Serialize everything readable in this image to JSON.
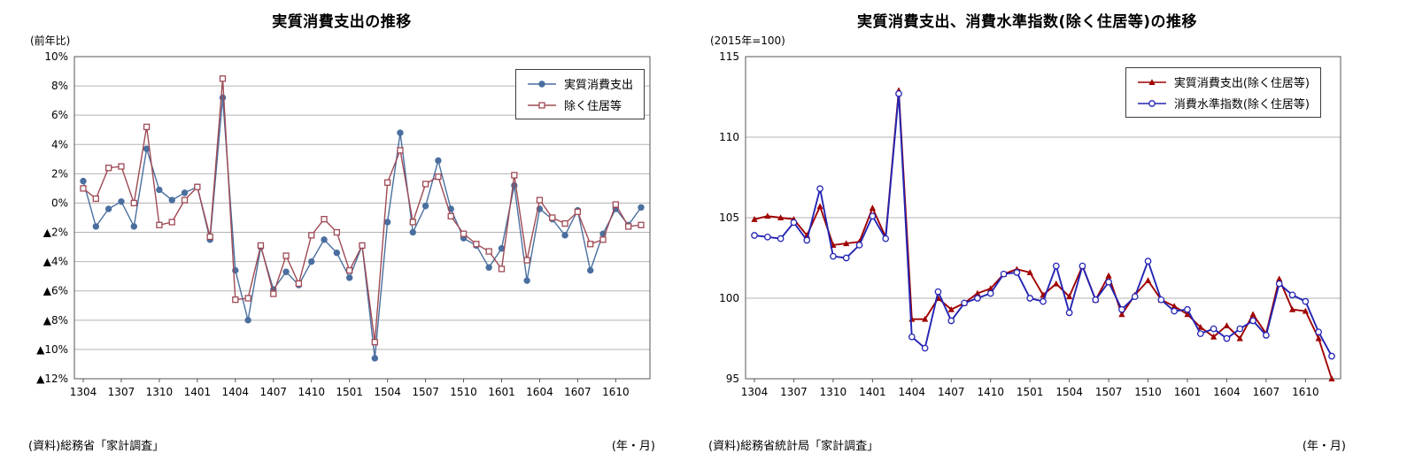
{
  "chart_data": [
    {
      "type": "line",
      "title": "実質消費支出の推移",
      "unit_label": "(前年比)",
      "source": "(資料)総務省「家計調査」",
      "axis_note": "(年・月)",
      "grid": true,
      "legend_position": "top-right",
      "ylim": [
        -12,
        10
      ],
      "ytick_step": 2,
      "ytick_labels": [
        "10%",
        "8%",
        "6%",
        "4%",
        "2%",
        "0%",
        "▲2%",
        "▲4%",
        "▲6%",
        "▲8%",
        "▲10%",
        "▲12%"
      ],
      "x_tick_labels": [
        "1304",
        "1307",
        "1310",
        "1401",
        "1404",
        "1407",
        "1410",
        "1501",
        "1504",
        "1507",
        "1510",
        "1601",
        "1604",
        "1607",
        "1610"
      ],
      "categories": [
        "1304",
        "1305",
        "1306",
        "1307",
        "1308",
        "1309",
        "1310",
        "1311",
        "1312",
        "1401",
        "1402",
        "1403",
        "1404",
        "1405",
        "1406",
        "1407",
        "1408",
        "1409",
        "1410",
        "1411",
        "1412",
        "1501",
        "1502",
        "1503",
        "1504",
        "1505",
        "1506",
        "1507",
        "1508",
        "1509",
        "1510",
        "1511",
        "1512",
        "1601",
        "1602",
        "1603",
        "1604",
        "1605",
        "1606",
        "1607",
        "1608",
        "1609",
        "1610",
        "1611",
        "1612"
      ],
      "series": [
        {
          "name": "実質消費支出",
          "color": "#4a6f9f",
          "marker": "circle-filled",
          "values": [
            1.5,
            -1.6,
            -0.4,
            0.1,
            -1.6,
            3.7,
            0.9,
            0.2,
            0.7,
            1.1,
            -2.5,
            7.2,
            -4.6,
            -8.0,
            -3.0,
            -5.9,
            -4.7,
            -5.6,
            -4.0,
            -2.5,
            -3.4,
            -5.1,
            -2.9,
            -10.6,
            -1.3,
            4.8,
            -2.0,
            -0.2,
            2.9,
            -0.4,
            -2.4,
            -2.9,
            -4.4,
            -3.1,
            1.2,
            -5.3,
            -0.4,
            -1.1,
            -2.2,
            -0.5,
            -4.6,
            -2.1,
            -0.4,
            -1.5,
            -0.3
          ]
        },
        {
          "name": "除く住居等",
          "color": "#9e4a54",
          "marker": "square-open",
          "values": [
            1.0,
            0.3,
            2.4,
            2.5,
            0.0,
            5.2,
            -1.5,
            -1.3,
            0.2,
            1.1,
            -2.3,
            8.5,
            -6.6,
            -6.5,
            -2.9,
            -6.2,
            -3.6,
            -5.5,
            -2.2,
            -1.1,
            -2.0,
            -4.6,
            -2.9,
            -9.5,
            1.4,
            3.6,
            -1.3,
            1.3,
            1.8,
            -0.9,
            -2.1,
            -2.8,
            -3.3,
            -4.5,
            1.9,
            -3.9,
            0.2,
            -1.0,
            -1.4,
            -0.6,
            -2.8,
            -2.5,
            -0.1,
            -1.6,
            -1.5
          ]
        }
      ]
    },
    {
      "type": "line",
      "title": "実質消費支出、消費水準指数(除く住居等)の推移",
      "unit_label": "(2015年=100)",
      "source": "(資料)総務省統計局「家計調査」",
      "axis_note": "(年・月)",
      "grid": true,
      "legend_position": "top-right",
      "ylim": [
        95,
        115
      ],
      "ytick_step": 5,
      "ytick_labels": [
        "115",
        "110",
        "105",
        "100",
        "95"
      ],
      "x_tick_labels": [
        "1304",
        "1307",
        "1310",
        "1401",
        "1404",
        "1407",
        "1410",
        "1501",
        "1504",
        "1507",
        "1510",
        "1601",
        "1604",
        "1607",
        "1610"
      ],
      "categories": [
        "1304",
        "1305",
        "1306",
        "1307",
        "1308",
        "1309",
        "1310",
        "1311",
        "1312",
        "1401",
        "1402",
        "1403",
        "1404",
        "1405",
        "1406",
        "1407",
        "1408",
        "1409",
        "1410",
        "1411",
        "1412",
        "1501",
        "1502",
        "1503",
        "1504",
        "1505",
        "1506",
        "1507",
        "1508",
        "1509",
        "1510",
        "1511",
        "1512",
        "1601",
        "1602",
        "1603",
        "1604",
        "1605",
        "1606",
        "1607",
        "1608",
        "1609",
        "1610",
        "1611",
        "1612"
      ],
      "series": [
        {
          "name": "実質消費支出(除く住居等)",
          "color": "#a00000",
          "marker": "triangle-filled",
          "values": [
            104.9,
            105.1,
            105.0,
            104.9,
            103.9,
            105.7,
            103.3,
            103.4,
            103.5,
            105.6,
            103.8,
            112.9,
            98.7,
            98.7,
            100.0,
            99.3,
            99.7,
            100.3,
            100.6,
            101.5,
            101.8,
            101.6,
            100.2,
            100.9,
            100.1,
            102.0,
            99.9,
            101.4,
            99.0,
            100.2,
            101.1,
            99.9,
            99.5,
            99.0,
            98.2,
            97.6,
            98.3,
            97.5,
            99.0,
            97.8,
            101.2,
            99.3,
            99.2,
            97.5,
            95.0
          ]
        },
        {
          "name": "消費水準指数(除く住居等)",
          "color": "#2424b4",
          "marker": "circle-open",
          "values": [
            103.9,
            103.8,
            103.7,
            104.7,
            103.6,
            106.8,
            102.6,
            102.5,
            103.3,
            105.1,
            103.7,
            112.7,
            97.6,
            96.9,
            100.4,
            98.6,
            99.7,
            100.0,
            100.3,
            101.5,
            101.6,
            100.0,
            99.8,
            102.0,
            99.1,
            102.0,
            99.9,
            101.0,
            99.3,
            100.1,
            102.3,
            99.9,
            99.2,
            99.3,
            97.8,
            98.1,
            97.5,
            98.1,
            98.6,
            97.7,
            100.9,
            100.2,
            99.8,
            97.9,
            96.4
          ]
        }
      ]
    }
  ]
}
